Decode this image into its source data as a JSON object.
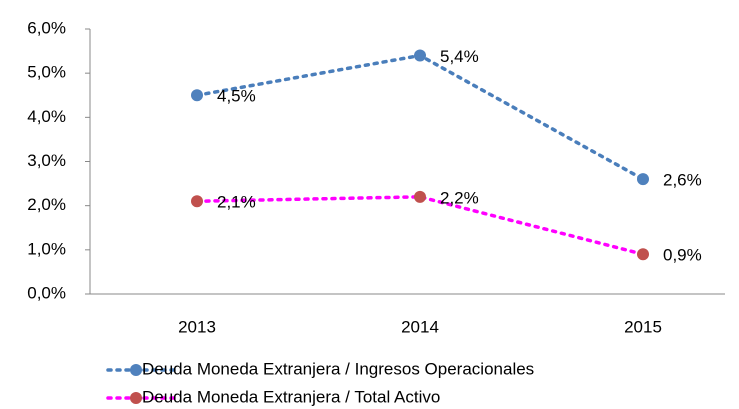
{
  "chart_data": {
    "type": "line",
    "categories": [
      "2013",
      "2014",
      "2015"
    ],
    "series": [
      {
        "name": "Deuda Moneda Extranjera / Ingresos Operacionales",
        "color": "#4a7ebb",
        "marker_color": "#4f81bd",
        "values": [
          4.5,
          5.4,
          2.6
        ],
        "value_labels": [
          "4,5%",
          "5,4%",
          "2,6%"
        ]
      },
      {
        "name": "Deuda Moneda Extranjera / Total Activo",
        "color": "#ff00ff",
        "marker_color": "#c0504d",
        "values": [
          2.1,
          2.2,
          0.9
        ],
        "value_labels": [
          "2,1%",
          "2,2%",
          "0,9%"
        ]
      }
    ],
    "ylim": [
      0,
      6
    ],
    "yticks": [
      {
        "value": 0,
        "label": "0,0%"
      },
      {
        "value": 1,
        "label": "1,0%"
      },
      {
        "value": 2,
        "label": "2,0%"
      },
      {
        "value": 3,
        "label": "3,0%"
      },
      {
        "value": 4,
        "label": "4,0%"
      },
      {
        "value": 5,
        "label": "5,0%"
      },
      {
        "value": 6,
        "label": "6,0%"
      }
    ],
    "grid": false,
    "legend": "bottom"
  }
}
